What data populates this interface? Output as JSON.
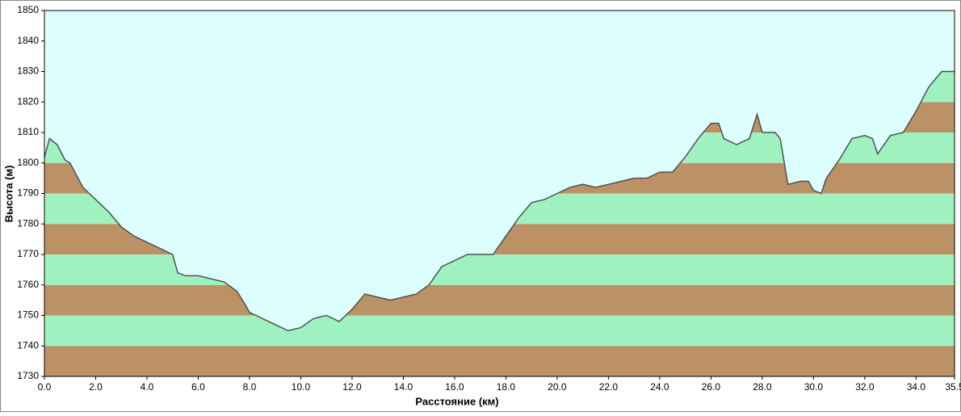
{
  "chart_data": {
    "type": "area",
    "x_label": "Расстояние  (км)",
    "y_label": "Высота (м)",
    "x": [
      0,
      0.2,
      0.5,
      0.8,
      1.0,
      1.5,
      2.0,
      2.5,
      3.0,
      3.5,
      4.0,
      4.5,
      5.0,
      5.2,
      5.5,
      6.0,
      6.5,
      7.0,
      7.5,
      7.8,
      8.0,
      8.5,
      9.0,
      9.5,
      10.0,
      10.5,
      11.0,
      11.5,
      12.0,
      12.5,
      13.0,
      13.5,
      14.0,
      14.5,
      15.0,
      15.5,
      16.0,
      16.5,
      17.0,
      17.5,
      18.0,
      18.5,
      19.0,
      19.5,
      20.0,
      20.5,
      21.0,
      21.5,
      22.0,
      22.5,
      23.0,
      23.5,
      24.0,
      24.5,
      25.0,
      25.5,
      26.0,
      26.3,
      26.5,
      27.0,
      27.5,
      27.8,
      28.0,
      28.5,
      28.7,
      29.0,
      29.5,
      29.8,
      30.0,
      30.3,
      30.5,
      31.0,
      31.5,
      32.0,
      32.3,
      32.5,
      33.0,
      33.5,
      34.0,
      34.5,
      35.0,
      35.5
    ],
    "values": [
      1802,
      1808,
      1806,
      1801,
      1800,
      1792,
      1788,
      1784,
      1779,
      1776,
      1774,
      1772,
      1770,
      1764,
      1763,
      1763,
      1762,
      1761,
      1758,
      1754,
      1751,
      1749,
      1747,
      1745,
      1746,
      1749,
      1750,
      1748,
      1752,
      1757,
      1756,
      1755,
      1756,
      1757,
      1760,
      1766,
      1768,
      1770,
      1770,
      1770,
      1776,
      1782,
      1787,
      1788,
      1790,
      1792,
      1793,
      1792,
      1793,
      1794,
      1795,
      1795,
      1797,
      1797,
      1802,
      1808,
      1813,
      1813,
      1808,
      1806,
      1808,
      1816,
      1810,
      1810,
      1808,
      1793,
      1794,
      1794,
      1791,
      1790,
      1795,
      1801,
      1808,
      1809,
      1808,
      1803,
      1809,
      1810,
      1817,
      1825,
      1830,
      1830
    ],
    "color": "#505050",
    "background": "#dcfffe",
    "band_colors": [
      "#bd9166",
      "#9ff2c0"
    ],
    "xlim": [
      0,
      35.5
    ],
    "ylim": [
      1730,
      1850
    ],
    "xticks": [
      {
        "value": 0,
        "label": "0.0"
      },
      {
        "value": 2,
        "label": "2.0"
      },
      {
        "value": 4,
        "label": "4.0"
      },
      {
        "value": 6,
        "label": "6.0"
      },
      {
        "value": 8,
        "label": "8.0"
      },
      {
        "value": 10,
        "label": "10.0"
      },
      {
        "value": 12,
        "label": "12.0"
      },
      {
        "value": 14,
        "label": "14.0"
      },
      {
        "value": 16,
        "label": "16.0"
      },
      {
        "value": 18,
        "label": "18.0"
      },
      {
        "value": 20,
        "label": "20.0"
      },
      {
        "value": 22,
        "label": "22.0"
      },
      {
        "value": 24,
        "label": "24.0"
      },
      {
        "value": 26,
        "label": "26.0"
      },
      {
        "value": 28,
        "label": "28.0"
      },
      {
        "value": 30,
        "label": "30.0"
      },
      {
        "value": 32,
        "label": "32.0"
      },
      {
        "value": 34,
        "label": "34.0"
      },
      {
        "value": 35.5,
        "label": "35.5"
      }
    ],
    "yticks": [
      1730,
      1740,
      1750,
      1760,
      1770,
      1780,
      1790,
      1800,
      1810,
      1820,
      1830,
      1840,
      1850
    ]
  }
}
